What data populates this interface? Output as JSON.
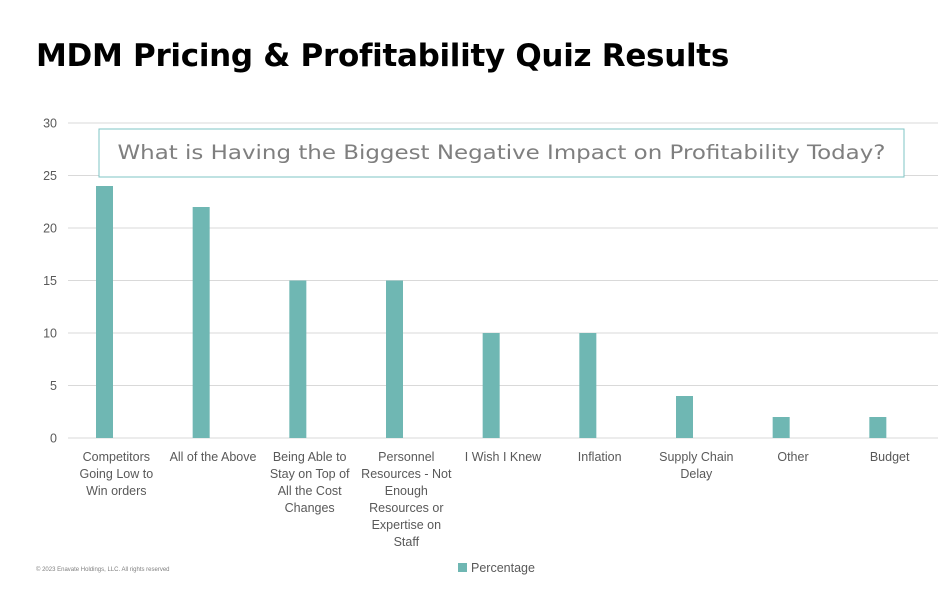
{
  "page": {
    "title": "MDM Pricing & Profitability Quiz Results",
    "footer": "© 2023 Enavate Holdings, LLC. All rights reserved"
  },
  "colors": {
    "bar": "#6fb7b3",
    "grid": "#d9d9d9",
    "axis_text": "#595959",
    "box_border": "#7fc4c4",
    "box_text": "#7f7f7f"
  },
  "chart_data": {
    "type": "bar",
    "annotation": "What is Having the Biggest Negative Impact on Profitability Today?",
    "categories": [
      [
        "Competitors",
        "Going Low to",
        "Win orders"
      ],
      [
        "All of the Above"
      ],
      [
        "Being Able to",
        "Stay on Top of",
        "All the Cost",
        "Changes"
      ],
      [
        "Personnel",
        "Resources - Not",
        "Enough",
        "Resources or",
        "Expertise on",
        "Staff"
      ],
      [
        "I Wish I Knew"
      ],
      [
        "Inflation"
      ],
      [
        "Supply Chain",
        "Delay"
      ],
      [
        "Other"
      ],
      [
        "Budget"
      ]
    ],
    "series": [
      {
        "name": "Percentage",
        "values": [
          24,
          22,
          15,
          15,
          10,
          10,
          4,
          2,
          2
        ]
      }
    ],
    "yticks": [
      "0",
      "5",
      "10",
      "15",
      "20",
      "25",
      "30"
    ],
    "ylim": [
      0,
      30
    ],
    "grid": true,
    "legend": "bottom-center"
  }
}
